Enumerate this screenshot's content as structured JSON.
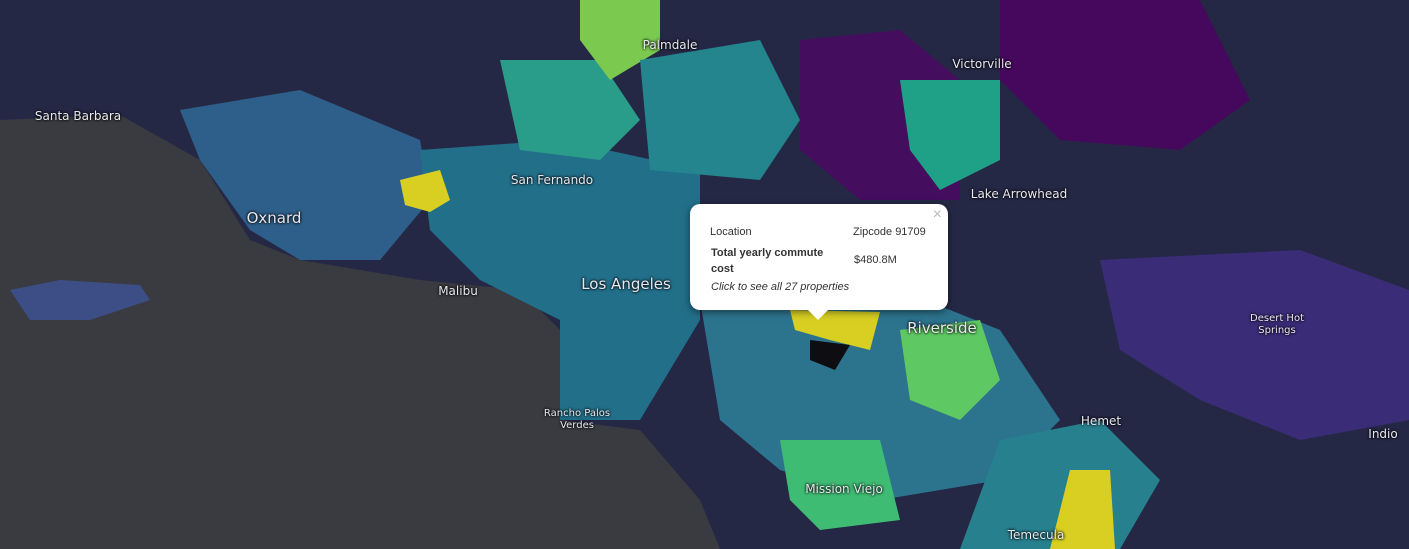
{
  "map": {
    "labels": [
      "Palmdale",
      "Victorville",
      "Santa Barbara",
      "San Fernando",
      "Lake Arrowhead",
      "Oxnard",
      "Los Angeles",
      "Malibu",
      "Riverside",
      "Desert Hot Springs",
      "Rancho Palos Verdes",
      "Hemet",
      "Indio",
      "Mission Viejo",
      "Temecula"
    ]
  },
  "popup": {
    "close": "×",
    "rows": [
      [
        "Location",
        "Zipcode 91709"
      ],
      [
        "Total yearly commute cost",
        "$480.8M"
      ]
    ],
    "link": "Click to see all 27 properties"
  }
}
